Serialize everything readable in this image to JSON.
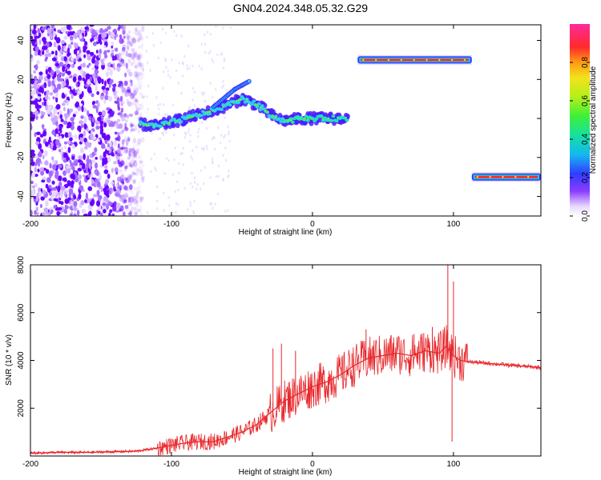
{
  "title": "GN04.2024.348.05.32.G29",
  "chart_data": [
    {
      "type": "heatmap",
      "xlabel": "Height of straight line (km)",
      "ylabel": "Frequency (Hz)",
      "xlim": [
        -200,
        162
      ],
      "ylim": [
        -50,
        48
      ],
      "xticks": [
        -200,
        -100,
        0,
        100
      ],
      "yticks": [
        -40,
        -20,
        0,
        20,
        40
      ],
      "colorbar": {
        "label": "Normalized spectral amplitude",
        "range": [
          0,
          1
        ],
        "ticks": [
          "0.0",
          "0.2",
          "0.4",
          "0.6",
          "0.8"
        ]
      },
      "noise_region": {
        "x_range": [
          -200,
          -120
        ],
        "y_range": [
          -50,
          48
        ]
      },
      "ridge": {
        "x": [
          -122,
          -110,
          -100,
          -90,
          -80,
          -70,
          -60,
          -50,
          -45,
          -40,
          -35,
          -30,
          -25,
          -20,
          -15,
          -10,
          -5,
          0,
          10,
          20,
          25
        ],
        "y": [
          -3,
          -4,
          -2,
          0,
          2,
          4,
          7,
          10,
          9,
          7,
          5,
          2,
          0,
          -1,
          -1,
          0,
          0,
          0,
          0,
          0,
          0
        ]
      },
      "secondary_ridge": {
        "x": [
          -70,
          -65,
          -60,
          -55,
          -50,
          -45
        ],
        "y": [
          6,
          9,
          12,
          15,
          17,
          19
        ]
      },
      "tones": [
        {
          "x_start": 32,
          "x_end": 113,
          "frequency": 30
        },
        {
          "x_start": 113,
          "x_end": 162,
          "frequency": -30
        }
      ]
    },
    {
      "type": "line",
      "xlabel": "Height of straight line (km)",
      "ylabel": "SNR (10 * v/v)",
      "xlim": [
        -200,
        162
      ],
      "ylim": [
        0,
        8000
      ],
      "xticks": [
        -200,
        -100,
        0,
        100
      ],
      "yticks": [
        2000,
        4000,
        6000,
        8000
      ],
      "series": [
        {
          "color": "#e8262a",
          "x": [
            -200,
            -180,
            -160,
            -140,
            -125,
            -110,
            -100,
            -90,
            -80,
            -70,
            -60,
            -50,
            -40,
            -30,
            -20,
            -10,
            0,
            10,
            20,
            30,
            40,
            50,
            60,
            70,
            80,
            90,
            95,
            100,
            105,
            110,
            120,
            140,
            162
          ],
          "y": [
            120,
            150,
            150,
            180,
            200,
            330,
            450,
            550,
            600,
            600,
            800,
            1000,
            1300,
            1800,
            2300,
            2600,
            2900,
            3100,
            3400,
            3800,
            4100,
            4200,
            4300,
            4200,
            4400,
            4300,
            4600,
            4200,
            4000,
            3950,
            3900,
            3800,
            3700
          ]
        }
      ],
      "spikes": [
        {
          "x": -28,
          "y": 4500
        },
        {
          "x": -22,
          "y": 4700
        },
        {
          "x": -12,
          "y": 4400
        },
        {
          "x": 28,
          "y": 4300
        },
        {
          "x": 38,
          "y": 5300
        },
        {
          "x": 72,
          "y": 5100
        },
        {
          "x": 85,
          "y": 5400
        },
        {
          "x": 96,
          "y": 8000
        },
        {
          "x": 100,
          "y": 7300
        },
        {
          "x": 99,
          "y": 600
        }
      ]
    }
  ]
}
